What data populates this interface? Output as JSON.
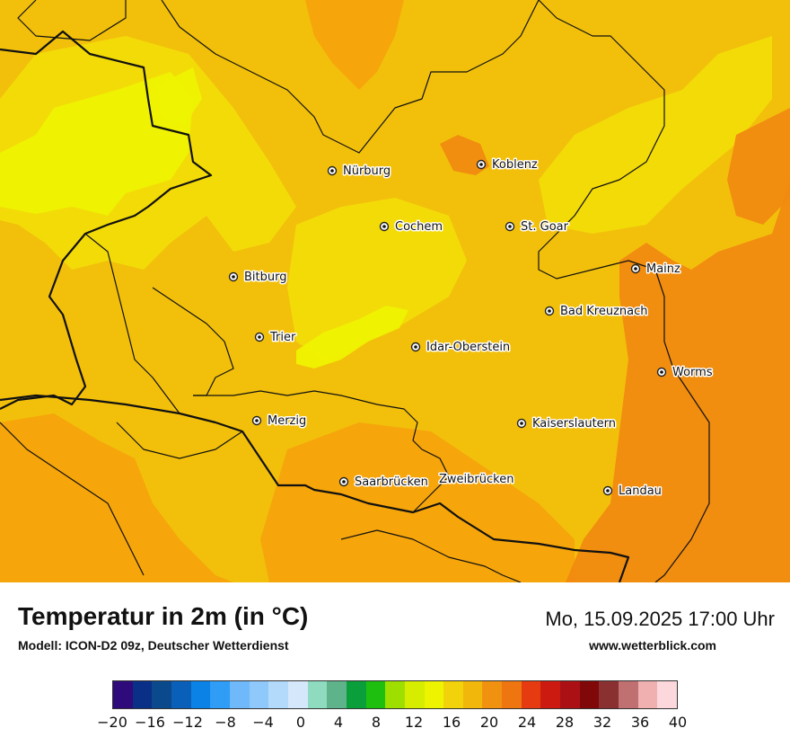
{
  "map": {
    "cities": [
      {
        "name": "Nürburg"
      },
      {
        "name": "Koblenz"
      },
      {
        "name": "Cochem"
      },
      {
        "name": "St. Goar"
      },
      {
        "name": "Bitburg"
      },
      {
        "name": "Mainz"
      },
      {
        "name": "Bad Kreuznach"
      },
      {
        "name": "Trier"
      },
      {
        "name": "Idar-Oberstein"
      },
      {
        "name": "Worms"
      },
      {
        "name": "Merzig"
      },
      {
        "name": "Kaiserslautern"
      },
      {
        "name": "Saarbrücken"
      },
      {
        "name": "Zweibrücken"
      },
      {
        "name": "Landau"
      }
    ],
    "colors": {
      "base": "#f2c00b",
      "warm": "#f5a30c",
      "hot": "#f08a10",
      "cool": "#f2dc08",
      "coolest": "#eef300",
      "border": "#111111"
    }
  },
  "footer": {
    "title": "Temperatur in 2m (in °C)",
    "model": "Modell: ICON-D2 09z, Deutscher Wetterdienst",
    "datetime": "Mo, 15.09.2025 17:00 Uhr",
    "website": "www.wetterblick.com"
  },
  "legend": {
    "min": -20,
    "max": 40,
    "colors": [
      "#2e0a7a",
      "#0a2f86",
      "#0a4a8c",
      "#0a5fb8",
      "#0a82e6",
      "#2f9cf5",
      "#6fb8f9",
      "#8fc8fb",
      "#b3d9fb",
      "#d5e8fb",
      "#8fdbbf",
      "#5fb38a",
      "#0a9f3a",
      "#1fbf10",
      "#9fdf00",
      "#d7ed00",
      "#eef300",
      "#f2d20b",
      "#f2b70b",
      "#f0920f",
      "#ef7510",
      "#e63a10",
      "#cc1a10",
      "#aa1014",
      "#800808",
      "#8a3030",
      "#c07070",
      "#f0b0b0",
      "#fcd8dc"
    ],
    "tick_labels": [
      "−20",
      "−16",
      "−12",
      "−8",
      "−4",
      "0",
      "4",
      "8",
      "12",
      "16",
      "20",
      "24",
      "28",
      "32",
      "36",
      "40"
    ]
  }
}
